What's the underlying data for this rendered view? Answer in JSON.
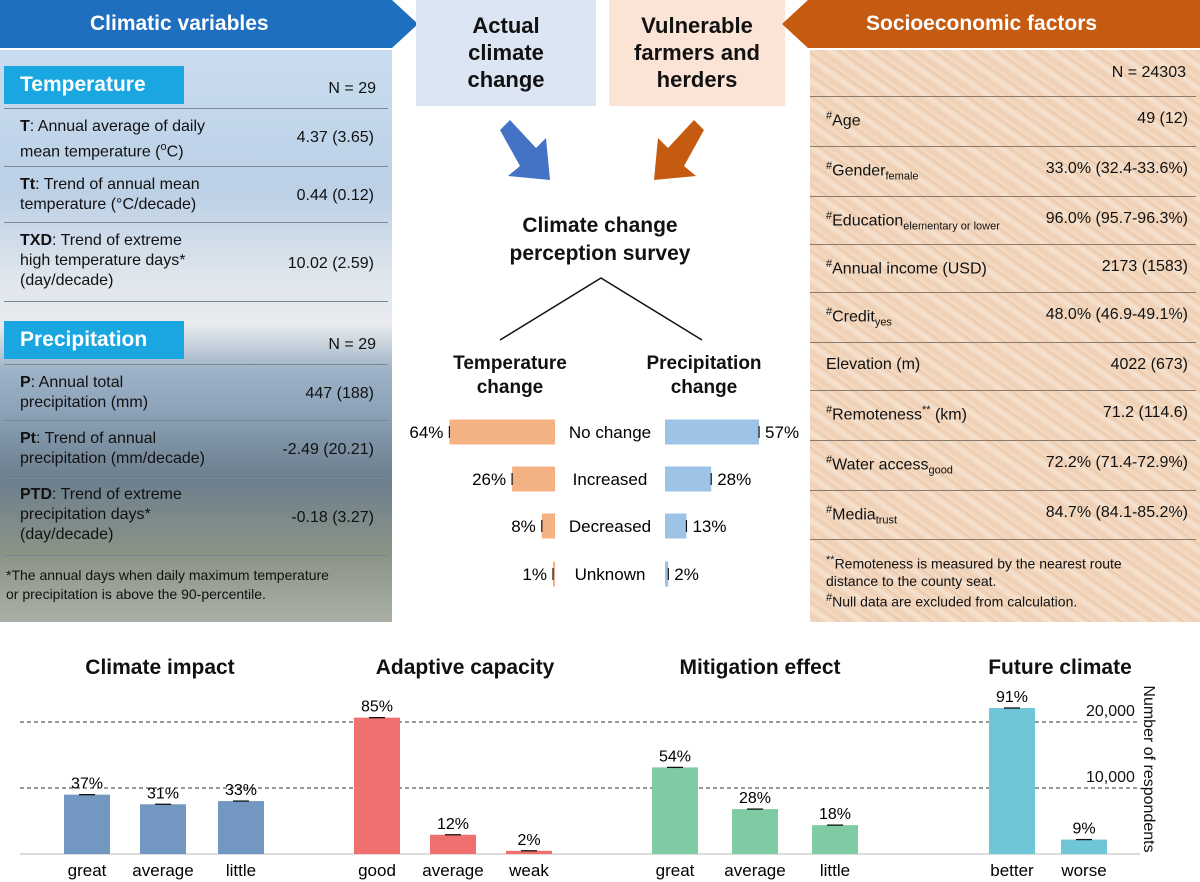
{
  "left": {
    "header": "Climatic variables",
    "temperature": {
      "title": "Temperature",
      "n": "N = 29",
      "rows": [
        {
          "abbr": "T",
          "desc": ": Annual average of daily",
          "desc2": "mean temperature (",
          "unit_sup": "o",
          "unit_end": "C)",
          "value": "4.37 (3.65)"
        },
        {
          "abbr": "Tt",
          "desc": ": Trend of annual mean",
          "desc2": "temperature (°C/decade)",
          "value": "0.44 (0.12)"
        },
        {
          "abbr": "TXD",
          "desc": ": Trend of extreme",
          "desc2": "high temperature days*",
          "desc3": "(day/decade)",
          "value": "10.02 (2.59)"
        }
      ]
    },
    "precipitation": {
      "title": "Precipitation",
      "n": "N = 29",
      "rows": [
        {
          "abbr": "P",
          "desc": ": Annual total",
          "desc2": "precipitation  (mm)",
          "value": "447 (188)"
        },
        {
          "abbr": "Pt",
          "desc": ": Trend of annual",
          "desc2": "precipitation (mm/decade)",
          "value": "-2.49 (20.21)"
        },
        {
          "abbr": "PTD",
          "desc": ": Trend of extreme",
          "desc2": "precipitation days*",
          "desc3": "(day/decade)",
          "value": "-0.18 (3.27)"
        }
      ]
    },
    "note_line1": "*The annual days when daily maximum temperature",
    "note_line2": "or precipitation is above the 90-percentile."
  },
  "center": {
    "box_actual": [
      "Actual",
      "climate",
      "change"
    ],
    "box_vulnerable": [
      "Vulnerable",
      "farmers and",
      "herders"
    ],
    "survey_title": [
      "Climate change",
      "perception survey"
    ],
    "temp_title": [
      "Temperature",
      "change"
    ],
    "precip_title": [
      "Precipitation",
      "change"
    ],
    "categories": [
      "No change",
      "Increased",
      "Decreased",
      "Unknown"
    ],
    "temp_pct": [
      "64%",
      "26%",
      "8%",
      "1%"
    ],
    "precip_pct": [
      "57%",
      "28%",
      "13%",
      "2%"
    ],
    "colors": {
      "actual_box": "#dbe5f3",
      "vulnerable_box": "#fbe4d5",
      "temp_bar": "#f4b183",
      "precip_bar": "#9dc3e6",
      "blue_arrow": "#4472c4",
      "orange_arrow": "#c55a11"
    }
  },
  "right": {
    "header": "Socioeconomic factors",
    "n": "N = 24303",
    "rows": [
      {
        "sup": "#",
        "label": "Age",
        "sub": "",
        "value": "49 (12)"
      },
      {
        "sup": "#",
        "label": "Gender",
        "sub": "female",
        "value": "33.0% (32.4-33.6%)"
      },
      {
        "sup": "#",
        "label": "Education",
        "sub": "elementary or lower",
        "value": "96.0% (95.7-96.3%)"
      },
      {
        "sup": "#",
        "label": "Annual income (USD)",
        "sub": "",
        "value": "2173 (1583)"
      },
      {
        "sup": "#",
        "label": "Credit",
        "sub": "yes",
        "value": "48.0% (46.9-49.1%)"
      },
      {
        "sup": "",
        "label": "Elevation (m)",
        "sub": "",
        "value": "4022 (673)"
      },
      {
        "sup": "#",
        "label": "Remoteness",
        "sup2": "**",
        "label2": " (km)",
        "sub": "",
        "value": "71.2 (114.6)"
      },
      {
        "sup": "#",
        "label": "Water access",
        "sub": "good",
        "value": "72.2% (71.4-72.9%)"
      },
      {
        "sup": "#",
        "label": "Media",
        "sub": "trust",
        "value": "84.7% (84.1-85.2%)"
      }
    ],
    "note1_sup": "**",
    "note1": "Remoteness is measured by the nearest route",
    "note1b": "distance to the county seat.",
    "note2_sup": "#",
    "note2": "Null data are excluded from calculation."
  },
  "bottom": {
    "titles": [
      "Climate impact",
      "Adaptive capacity",
      "Mitigation effect",
      "Future climate"
    ],
    "axis_label": "Number of respondents",
    "ticks": [
      "10,000",
      "20,000"
    ]
  },
  "chart_data": [
    {
      "type": "bar",
      "title": "Temperature change",
      "categories": [
        "No change",
        "Increased",
        "Decreased",
        "Unknown"
      ],
      "values": [
        64,
        26,
        8,
        1
      ],
      "unit": "%"
    },
    {
      "type": "bar",
      "title": "Precipitation change",
      "categories": [
        "No change",
        "Increased",
        "Decreased",
        "Unknown"
      ],
      "values": [
        57,
        28,
        13,
        2
      ],
      "unit": "%"
    },
    {
      "type": "bar",
      "title": "Climate impact",
      "categories": [
        "great",
        "average",
        "little"
      ],
      "values": [
        37,
        31,
        33
      ],
      "labels": [
        "37%",
        "31%",
        "33%"
      ],
      "color": "#7297c0",
      "ylabel": "Number of respondents",
      "ylim": [
        0,
        24303
      ]
    },
    {
      "type": "bar",
      "title": "Adaptive capacity",
      "categories": [
        "good",
        "average",
        "weak"
      ],
      "values": [
        85,
        12,
        2
      ],
      "labels": [
        "85%",
        "12%",
        "2%"
      ],
      "color": "#f07070",
      "ylabel": "Number of respondents",
      "ylim": [
        0,
        24303
      ]
    },
    {
      "type": "bar",
      "title": "Mitigation effect",
      "categories": [
        "great",
        "average",
        "little"
      ],
      "values": [
        54,
        28,
        18
      ],
      "labels": [
        "54%",
        "28%",
        "18%"
      ],
      "color": "#7fcba3",
      "ylabel": "Number of respondents",
      "ylim": [
        0,
        24303
      ]
    },
    {
      "type": "bar",
      "title": "Future climate",
      "categories": [
        "better",
        "worse"
      ],
      "values": [
        91,
        9
      ],
      "labels": [
        "91%",
        "9%"
      ],
      "color": "#6fc6d8",
      "ylabel": "Number of respondents",
      "ylim": [
        0,
        24303
      ]
    }
  ]
}
